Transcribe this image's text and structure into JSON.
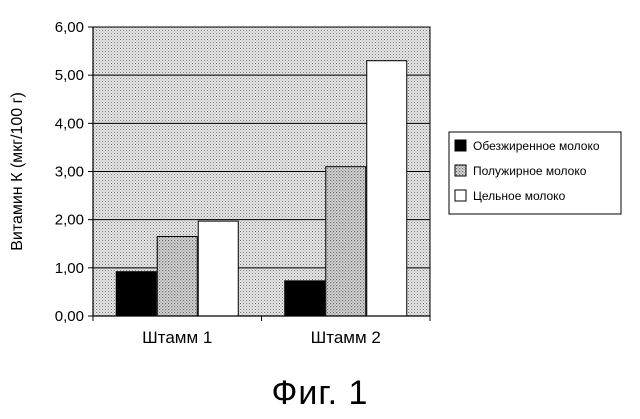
{
  "chart_data": {
    "type": "bar",
    "categories": [
      "Штамм 1",
      "Штамм 2"
    ],
    "series": [
      {
        "name": "Обезжиренное молоко",
        "values": [
          0.92,
          0.73
        ],
        "color": "#000000"
      },
      {
        "name": "Полужирное молоко",
        "values": [
          1.65,
          3.1
        ],
        "color": "#c8c8c8"
      },
      {
        "name": "Цельное молоко",
        "values": [
          1.97,
          5.3
        ],
        "color": "#ffffff"
      }
    ],
    "ylabel": "Витамин К (мкг/100 г)",
    "ylim": [
      0,
      6
    ],
    "yticks": [
      "0,00",
      "1,00",
      "2,00",
      "3,00",
      "4,00",
      "5,00",
      "6,00"
    ],
    "grid": true,
    "legend_position": "right",
    "plot_background": "#d4d4d4"
  },
  "caption": "Фиг. 1"
}
